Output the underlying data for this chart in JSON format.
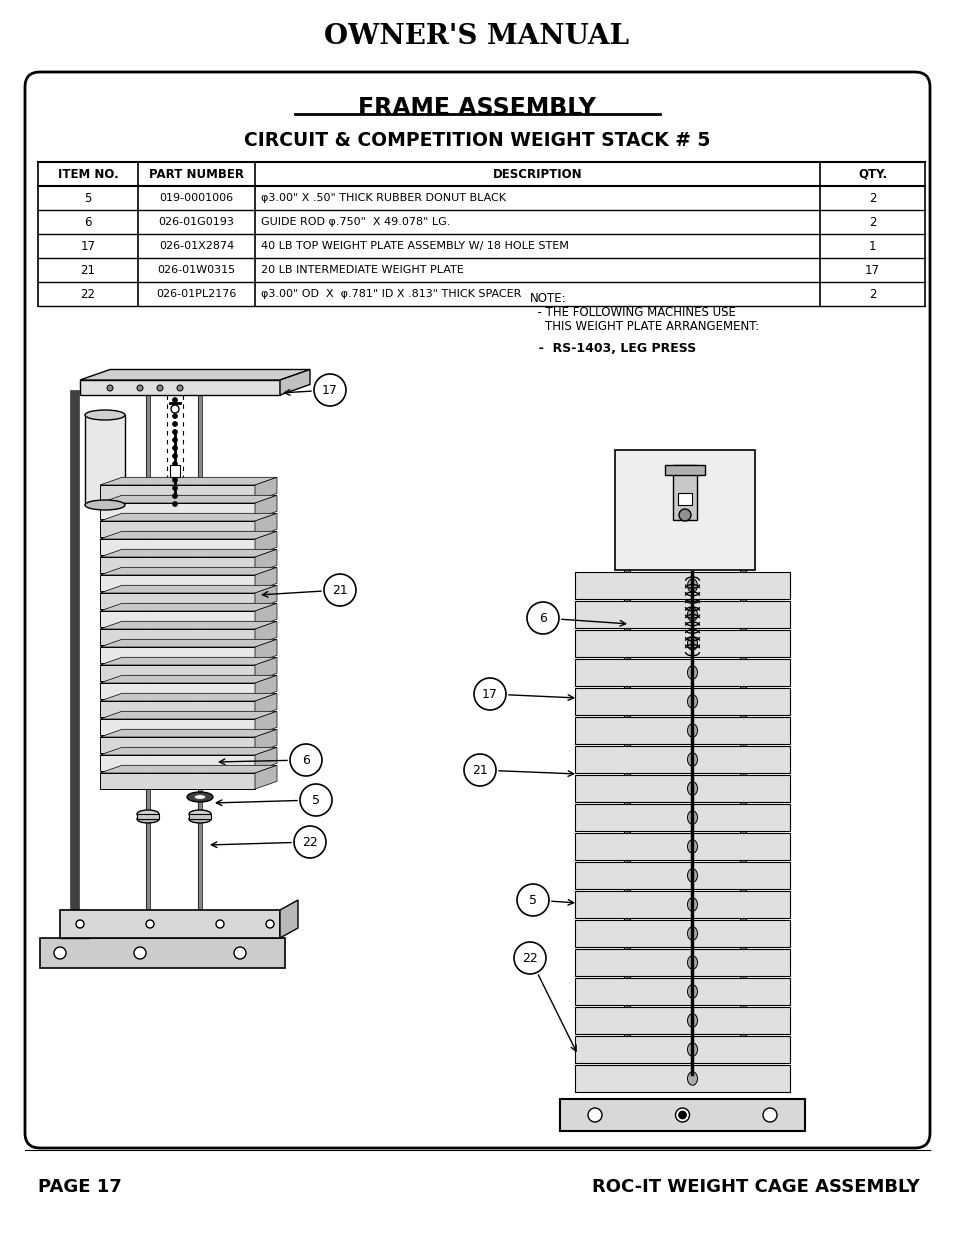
{
  "title_main": "OWNER'S MANUAL",
  "box_title1": "FRAME ASSEMBLY",
  "box_title2": "CIRCUIT & COMPETITION WEIGHT STACK # 5",
  "table_headers": [
    "ITEM NO.",
    "PART NUMBER",
    "DESCRIPTION",
    "QTY."
  ],
  "table_rows": [
    [
      "5",
      "019-0001006",
      "φ3.00\" X .50\" THICK RUBBER DONUT BLACK",
      "2"
    ],
    [
      "6",
      "026-01G0193",
      "GUIDE ROD φ.750\"  X 49.078\" LG.",
      "2"
    ],
    [
      "17",
      "026-01X2874",
      "40 LB TOP WEIGHT PLATE ASSEMBLY W/ 18 HOLE STEM",
      "1"
    ],
    [
      "21",
      "026-01W0315",
      "20 LB INTERMEDIATE WEIGHT PLATE",
      "17"
    ],
    [
      "22",
      "026-01PL2176",
      "φ3.00\" OD  X  φ.781\" ID X .813\" THICK SPACER",
      "2"
    ]
  ],
  "note_line1": "NOTE:",
  "note_line2": "  - THE FOLLOWING MACHINES USE",
  "note_line3": "    THIS WEIGHT PLATE ARRANGEMENT:",
  "note_bold": "  -  RS-1403, LEG PRESS",
  "footer_left": "PAGE 17",
  "footer_right": "ROC-IT WEIGHT CAGE ASSEMBLY",
  "bg_color": "#ffffff"
}
